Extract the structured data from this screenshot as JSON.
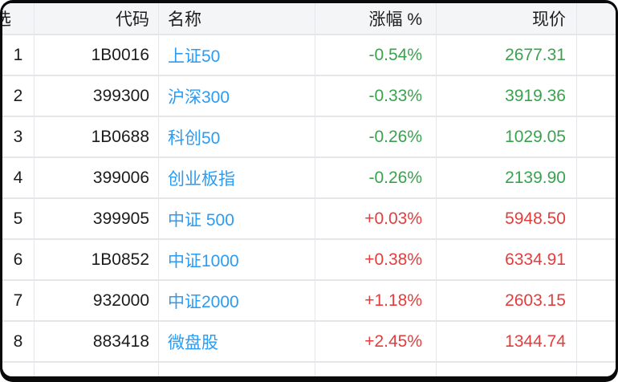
{
  "colors": {
    "up_red": "#e23e3d",
    "down_green": "#3aa24e",
    "name_blue": "#2b9bf4",
    "header_bg": "#f4f5f6",
    "border": "#e4e6e9",
    "text": "#1c1c1e",
    "frame": "#0a0a0a"
  },
  "table": {
    "header": {
      "select": "选",
      "code": "代码",
      "name": "名称",
      "change": "涨幅 %",
      "price": "现价",
      "extra": ""
    },
    "rows": [
      {
        "index": "1",
        "code": "1B0016",
        "name": "上证50",
        "change": "-0.54%",
        "price": "2677.31",
        "trend": "down"
      },
      {
        "index": "2",
        "code": "399300",
        "name": "沪深300",
        "change": "-0.33%",
        "price": "3919.36",
        "trend": "down"
      },
      {
        "index": "3",
        "code": "1B0688",
        "name": "科创50",
        "change": "-0.26%",
        "price": "1029.05",
        "trend": "down"
      },
      {
        "index": "4",
        "code": "399006",
        "name": "创业板指",
        "change": "-0.26%",
        "price": "2139.90",
        "trend": "down"
      },
      {
        "index": "5",
        "code": "399905",
        "name": "中证 500",
        "change": "+0.03%",
        "price": "5948.50",
        "trend": "up"
      },
      {
        "index": "6",
        "code": "1B0852",
        "name": "中证1000",
        "change": "+0.38%",
        "price": "6334.91",
        "trend": "up"
      },
      {
        "index": "7",
        "code": "932000",
        "name": "中证2000",
        "change": "+1.18%",
        "price": "2603.15",
        "trend": "up"
      },
      {
        "index": "8",
        "code": "883418",
        "name": "微盘股",
        "change": "+2.45%",
        "price": "1344.74",
        "trend": "up"
      }
    ]
  }
}
